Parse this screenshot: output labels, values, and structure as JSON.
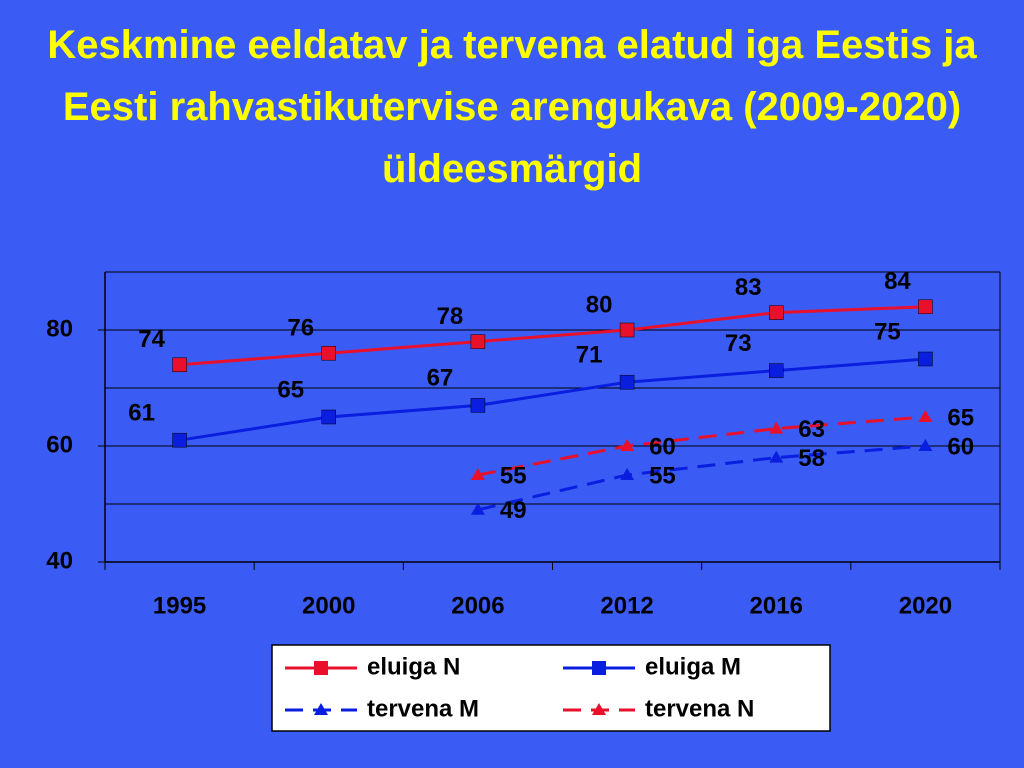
{
  "chart_data": {
    "type": "line",
    "title": "Keskmine eeldatav ja tervena elatud iga Eestis ja Eesti rahvastikutervise arengukava (2009-2020) üldeesmärgid",
    "categories": [
      "1995",
      "2000",
      "2006",
      "2012",
      "2016",
      "2020"
    ],
    "series": [
      {
        "name": "eluiga N",
        "color": "#e8102a",
        "marker": "square",
        "dashed": false,
        "values": [
          74,
          76,
          78,
          80,
          83,
          84
        ]
      },
      {
        "name": "eluiga M",
        "color": "#0a1ee0",
        "marker": "square",
        "dashed": false,
        "values": [
          61,
          65,
          67,
          71,
          73,
          75
        ]
      },
      {
        "name": "tervena M",
        "color": "#0a1ee0",
        "marker": "triangle",
        "dashed": true,
        "values": [
          null,
          null,
          49,
          55,
          58,
          60
        ]
      },
      {
        "name": "tervena N",
        "color": "#e8102a",
        "marker": "triangle",
        "dashed": true,
        "values": [
          null,
          null,
          55,
          60,
          63,
          65
        ]
      }
    ],
    "ylim": [
      40,
      90
    ],
    "yticks": [
      40,
      60,
      80
    ],
    "minor_yticks": [
      50,
      70
    ],
    "grid": true,
    "legend": "bottom"
  }
}
